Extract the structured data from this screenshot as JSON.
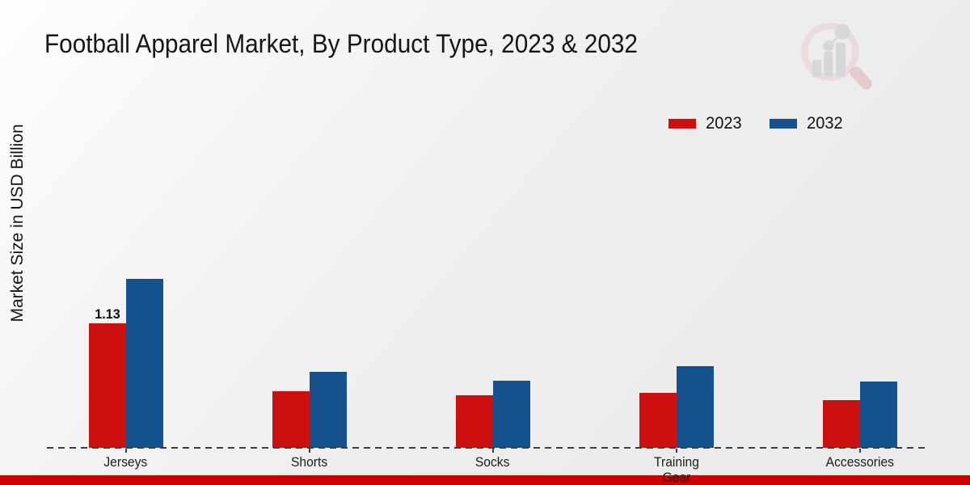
{
  "title": "Football Apparel Market, By Product Type, 2023 & 2032",
  "y_axis_label": "Market Size in USD Billion",
  "legend": {
    "items": [
      {
        "label": "2023",
        "color": "#cc1010"
      },
      {
        "label": "2032",
        "color": "#15518c"
      }
    ]
  },
  "watermark_icon": "magnifier-bar-chart-logo",
  "footer_bar_color": "#cb0000",
  "chart_data": {
    "type": "bar",
    "categories": [
      "Jerseys",
      "Shorts",
      "Socks",
      "Training Gear",
      "Accessories"
    ],
    "series": [
      {
        "name": "2023",
        "color": "#cc1010",
        "values": [
          1.13,
          0.51,
          0.48,
          0.5,
          0.43
        ]
      },
      {
        "name": "2032",
        "color": "#15518c",
        "values": [
          1.53,
          0.69,
          0.61,
          0.74,
          0.6
        ]
      }
    ],
    "title": "Football Apparel Market, By Product Type, 2023 & 2032",
    "xlabel": "",
    "ylabel": "Market Size in USD Billion",
    "ylim": [
      0,
      1.65
    ],
    "grid": false,
    "baseline_style": "dashed",
    "legend_position": "upper right",
    "bar_labels": [
      {
        "series": "2023",
        "category": "Jerseys",
        "text": "1.13"
      }
    ]
  }
}
